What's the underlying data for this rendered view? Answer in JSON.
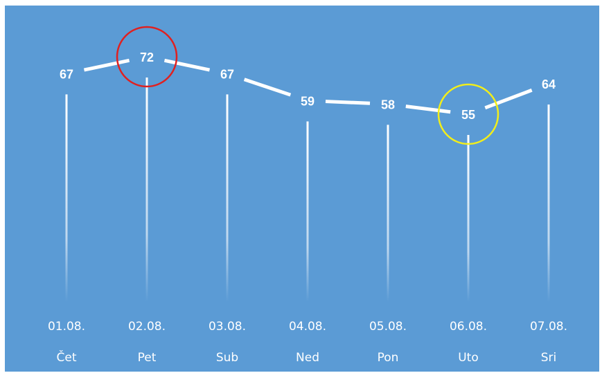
{
  "chart_data": {
    "type": "line",
    "categories": [
      {
        "date": "01.08.",
        "day": "Čet"
      },
      {
        "date": "02.08.",
        "day": "Pet"
      },
      {
        "date": "03.08.",
        "day": "Sub"
      },
      {
        "date": "04.08.",
        "day": "Ned"
      },
      {
        "date": "05.08.",
        "day": "Pon"
      },
      {
        "date": "06.08.",
        "day": "Uto"
      },
      {
        "date": "07.08.",
        "day": "Sri"
      }
    ],
    "values": [
      67,
      72,
      67,
      59,
      58,
      55,
      64
    ],
    "title": "",
    "xlabel": "",
    "ylabel": "",
    "grid": false,
    "legend": "none",
    "highlights": [
      {
        "index": 1,
        "color": "#e02020",
        "meaning": "maximum"
      },
      {
        "index": 5,
        "color": "#f2ee1a",
        "meaning": "minimum"
      }
    ],
    "colors": {
      "background": "#5b9bd5",
      "line": "#ffffff",
      "text": "#ffffff"
    }
  }
}
